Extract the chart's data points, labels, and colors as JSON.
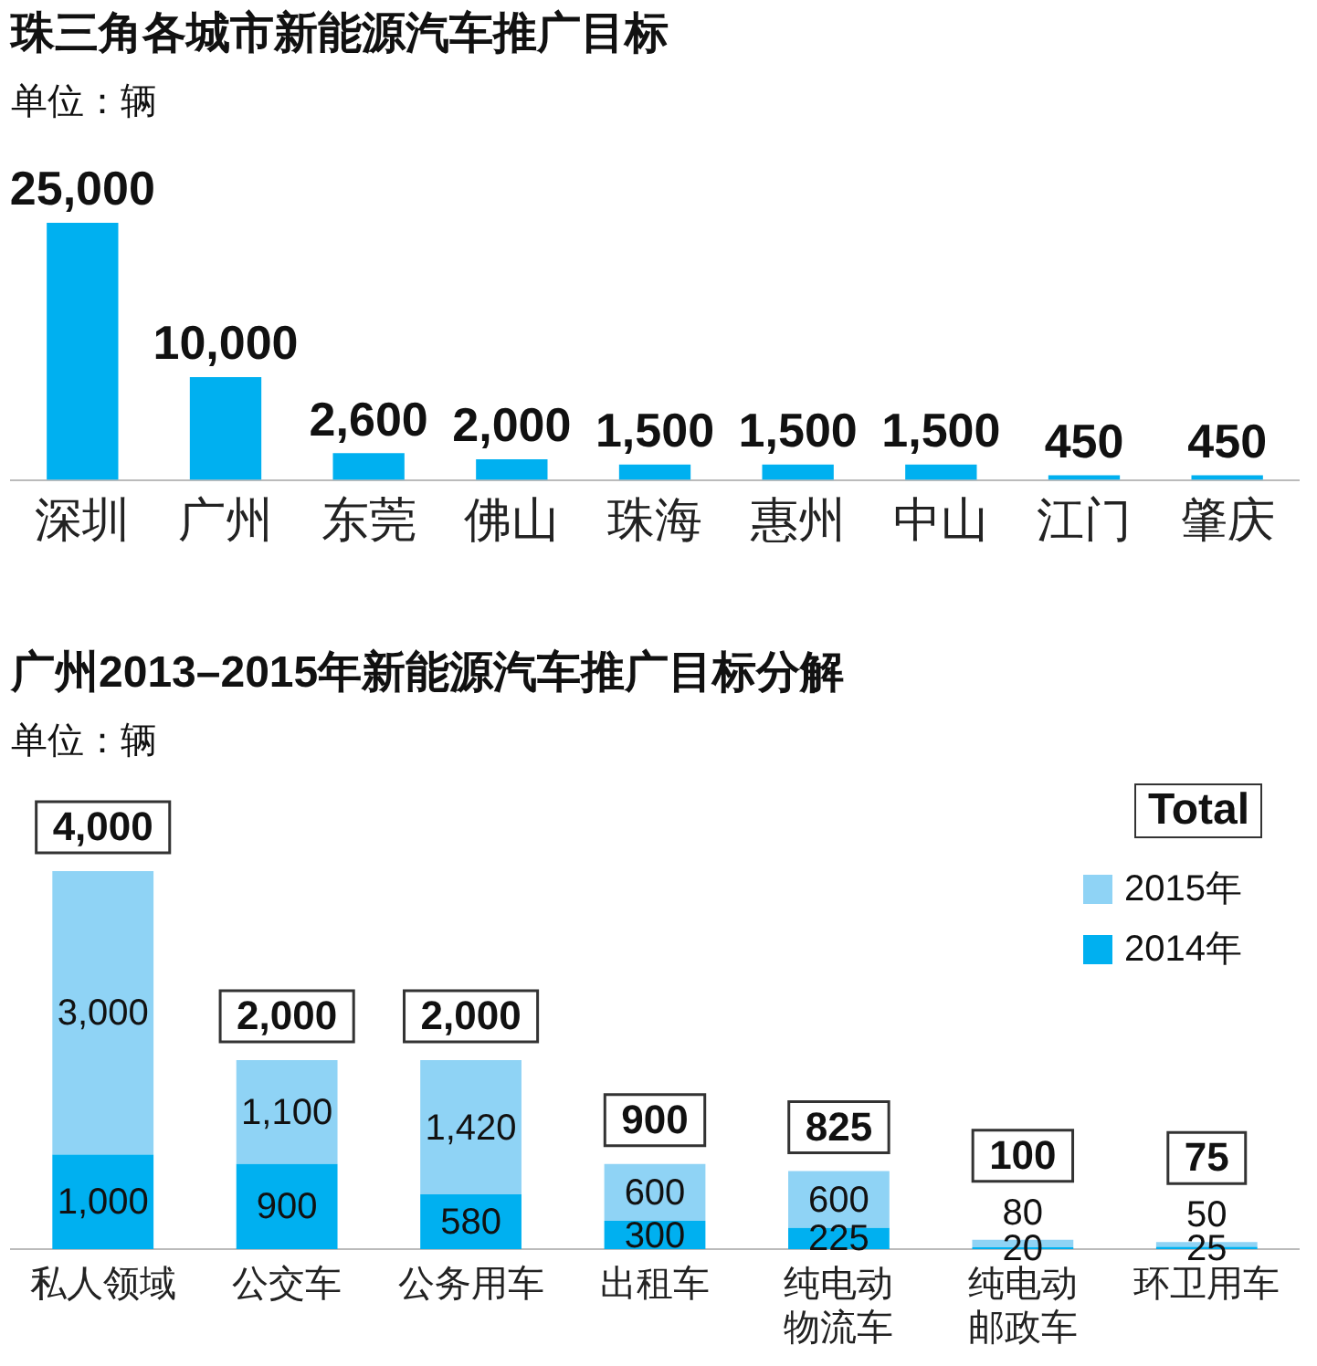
{
  "chart_data": [
    {
      "type": "bar",
      "title": "珠三角各城市新能源汽车推广目标",
      "subtitle": "单位：辆",
      "categories": [
        "深圳",
        "广州",
        "东莞",
        "佛山",
        "珠海",
        "惠州",
        "中山",
        "江门",
        "肇庆"
      ],
      "values": [
        25000,
        10000,
        2600,
        2000,
        1500,
        1500,
        1500,
        450,
        450
      ],
      "value_labels": [
        "25,000",
        "10,000",
        "2,600",
        "2,000",
        "1,500",
        "1,500",
        "1,500",
        "450",
        "450"
      ],
      "color": "#00b0f0"
    },
    {
      "type": "bar",
      "title": "广州2013–2015年新能源汽车推广目标分解",
      "subtitle": "单位：辆",
      "categories": [
        "私人领域",
        "公交车",
        "公务用车",
        "出租车",
        "纯电动物流车",
        "纯电动邮政车",
        "环卫用车"
      ],
      "stacked": true,
      "legend": "top right",
      "legend_title": "Total",
      "totals": [
        "4,000",
        "2,000",
        "2,000",
        "900",
        "825",
        "100",
        "75"
      ],
      "series": [
        {
          "name": "2014年",
          "color": "#00b0f0",
          "values": [
            1000,
            900,
            580,
            300,
            225,
            20,
            25
          ],
          "value_labels": [
            "1,000",
            "900",
            "580",
            "300",
            "225",
            "20",
            "25"
          ]
        },
        {
          "name": "2015年",
          "color": "#8fd3f5",
          "values": [
            3000,
            1100,
            1420,
            600,
            600,
            80,
            50
          ],
          "value_labels": [
            "3,000",
            "1,100",
            "1,420",
            "600",
            "600",
            "80",
            "50"
          ]
        }
      ]
    }
  ]
}
